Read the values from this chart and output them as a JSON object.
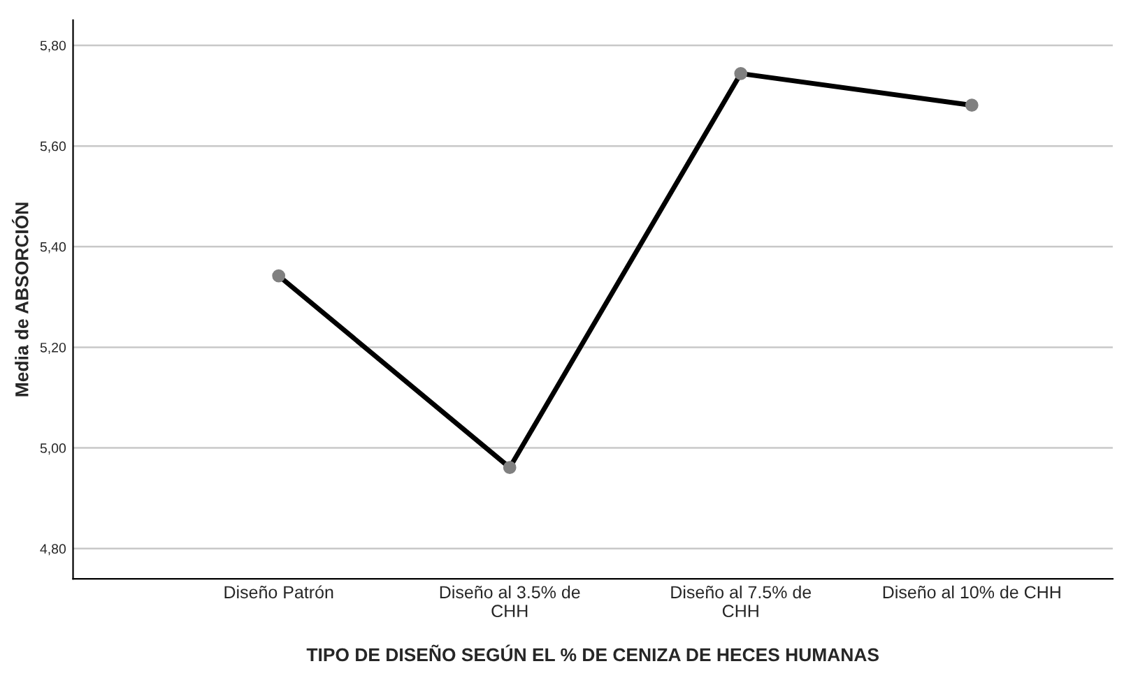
{
  "chart_data": {
    "type": "line",
    "xlabel": "TIPO DE DISEÑO SEGÚN EL % DE CENIZA DE HECES HUMANAS",
    "ylabel": "Media de ABSORCIÓN",
    "categories": [
      "Diseño Patrón",
      "Diseño al 3.5% de\nCHH",
      "Diseño al 7.5% de\nCHH",
      "Diseño al 10% de CHH"
    ],
    "series": [
      {
        "color": "#000000",
        "values": [
          5.342,
          4.961,
          5.744,
          5.681
        ]
      }
    ],
    "ylim": [
      4.74,
      5.85
    ],
    "yticks": [
      {
        "value": 4.8,
        "label": "4,80"
      },
      {
        "value": 5.0,
        "label": "5,00"
      },
      {
        "value": 5.2,
        "label": "5,20"
      },
      {
        "value": 5.4,
        "label": "5,40"
      },
      {
        "value": 5.6,
        "label": "5,60"
      },
      {
        "value": 5.8,
        "label": "5,80"
      }
    ],
    "grid": "y",
    "marker": "circle",
    "line_style": "solid",
    "legend": false
  }
}
